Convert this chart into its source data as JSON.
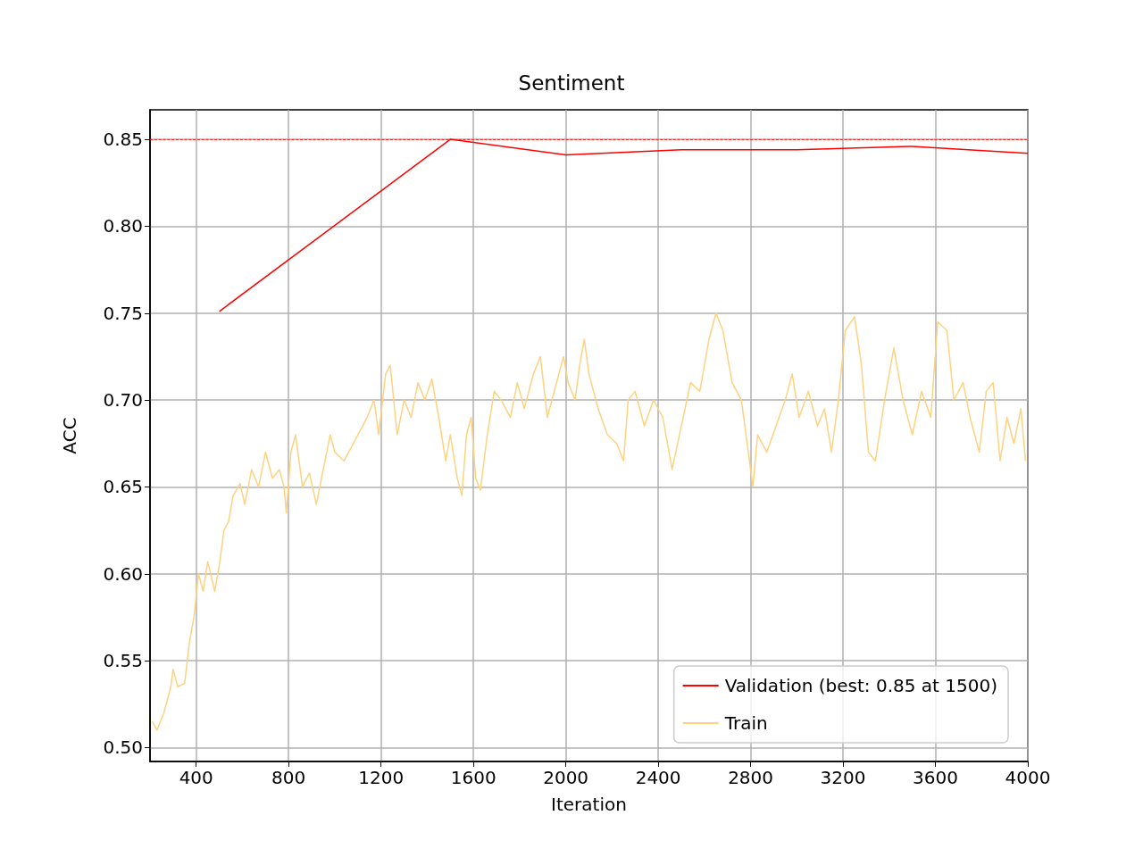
{
  "chart_data": {
    "type": "line",
    "title": "Sentiment",
    "xlabel": "Iteration",
    "ylabel": "ACC",
    "xlim": [
      200,
      4000
    ],
    "xticks": [
      400,
      800,
      1200,
      1600,
      2000,
      2400,
      2800,
      3200,
      3600,
      4000
    ],
    "ylim": [
      0.492,
      0.867
    ],
    "yticks": [
      {
        "value": 0.5,
        "label": "0.50"
      },
      {
        "value": 0.55,
        "label": "0.55"
      },
      {
        "value": 0.6,
        "label": "0.60"
      },
      {
        "value": 0.65,
        "label": "0.65"
      },
      {
        "value": 0.7,
        "label": "0.70"
      },
      {
        "value": 0.75,
        "label": "0.75"
      },
      {
        "value": 0.8,
        "label": "0.80"
      },
      {
        "value": 0.85,
        "label": "0.85"
      }
    ],
    "grid": true,
    "legend": "bottom right",
    "line_style": "solid",
    "ref_lines": [
      {
        "axis": "y",
        "value": 0.85,
        "color": "#ff0000",
        "line_style": "dashed"
      }
    ],
    "series": [
      {
        "name": "Validation (best: 0.85 at 1500)",
        "color": "#ff0000",
        "x": [
          500,
          1500,
          2000,
          2500,
          3000,
          3500,
          4000
        ],
        "values": [
          0.751,
          0.85,
          0.841,
          0.844,
          0.844,
          0.846,
          0.842
        ]
      },
      {
        "name": "Train",
        "color": "#ffd280",
        "x": [
          210,
          230,
          260,
          290,
          300,
          320,
          350,
          370,
          390,
          410,
          430,
          450,
          480,
          500,
          520,
          540,
          560,
          590,
          610,
          640,
          670,
          700,
          730,
          760,
          780,
          790,
          810,
          830,
          860,
          890,
          920,
          950,
          980,
          1000,
          1040,
          1060,
          1100,
          1140,
          1170,
          1190,
          1220,
          1240,
          1270,
          1300,
          1330,
          1360,
          1390,
          1420,
          1450,
          1480,
          1500,
          1530,
          1550,
          1570,
          1590,
          1610,
          1630,
          1660,
          1690,
          1720,
          1760,
          1790,
          1820,
          1860,
          1890,
          1920,
          1960,
          1990,
          2010,
          2040,
          2060,
          2080,
          2100,
          2140,
          2180,
          2220,
          2250,
          2270,
          2300,
          2340,
          2380,
          2420,
          2460,
          2500,
          2540,
          2580,
          2620,
          2650,
          2680,
          2720,
          2760,
          2790,
          2810,
          2830,
          2870,
          2910,
          2950,
          2980,
          3010,
          3050,
          3090,
          3120,
          3150,
          3180,
          3210,
          3250,
          3280,
          3310,
          3340,
          3380,
          3420,
          3460,
          3500,
          3540,
          3580,
          3610,
          3650,
          3680,
          3720,
          3750,
          3790,
          3820,
          3850,
          3880,
          3910,
          3940,
          3970,
          3990
        ],
        "values": [
          0.515,
          0.51,
          0.52,
          0.535,
          0.545,
          0.535,
          0.537,
          0.56,
          0.575,
          0.6,
          0.59,
          0.607,
          0.59,
          0.605,
          0.625,
          0.63,
          0.645,
          0.652,
          0.64,
          0.66,
          0.65,
          0.67,
          0.655,
          0.66,
          0.65,
          0.635,
          0.67,
          0.68,
          0.65,
          0.658,
          0.64,
          0.66,
          0.68,
          0.67,
          0.665,
          0.67,
          0.68,
          0.69,
          0.7,
          0.68,
          0.715,
          0.72,
          0.68,
          0.7,
          0.69,
          0.71,
          0.7,
          0.712,
          0.69,
          0.665,
          0.68,
          0.655,
          0.645,
          0.68,
          0.69,
          0.655,
          0.648,
          0.68,
          0.705,
          0.7,
          0.69,
          0.71,
          0.695,
          0.715,
          0.725,
          0.69,
          0.71,
          0.725,
          0.71,
          0.7,
          0.72,
          0.735,
          0.715,
          0.695,
          0.68,
          0.675,
          0.665,
          0.7,
          0.705,
          0.685,
          0.7,
          0.69,
          0.66,
          0.685,
          0.71,
          0.705,
          0.735,
          0.75,
          0.74,
          0.71,
          0.7,
          0.67,
          0.65,
          0.68,
          0.67,
          0.685,
          0.7,
          0.715,
          0.69,
          0.705,
          0.685,
          0.695,
          0.67,
          0.7,
          0.74,
          0.748,
          0.72,
          0.67,
          0.665,
          0.7,
          0.73,
          0.7,
          0.68,
          0.705,
          0.69,
          0.745,
          0.74,
          0.7,
          0.71,
          0.69,
          0.67,
          0.705,
          0.71,
          0.665,
          0.69,
          0.675,
          0.695,
          0.665
        ]
      }
    ]
  }
}
